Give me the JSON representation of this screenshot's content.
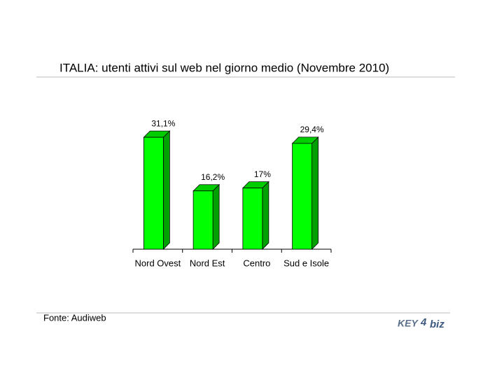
{
  "chart_data": {
    "type": "bar",
    "title": "ITALIA: utenti attivi sul web nel giorno medio (Novembre 2010)",
    "categories": [
      "Nord Ovest",
      "Nord Est",
      "Centro",
      "Sud e Isole"
    ],
    "values": [
      31.1,
      16.2,
      17,
      29.4
    ],
    "value_labels": [
      "31,1%",
      "16,2%",
      "17%",
      "29,4%"
    ],
    "color": "#00ff00",
    "source": "Fonte: Audiweb"
  },
  "logo": {
    "left": "KEY",
    "mid": "4",
    "right": "biz"
  }
}
